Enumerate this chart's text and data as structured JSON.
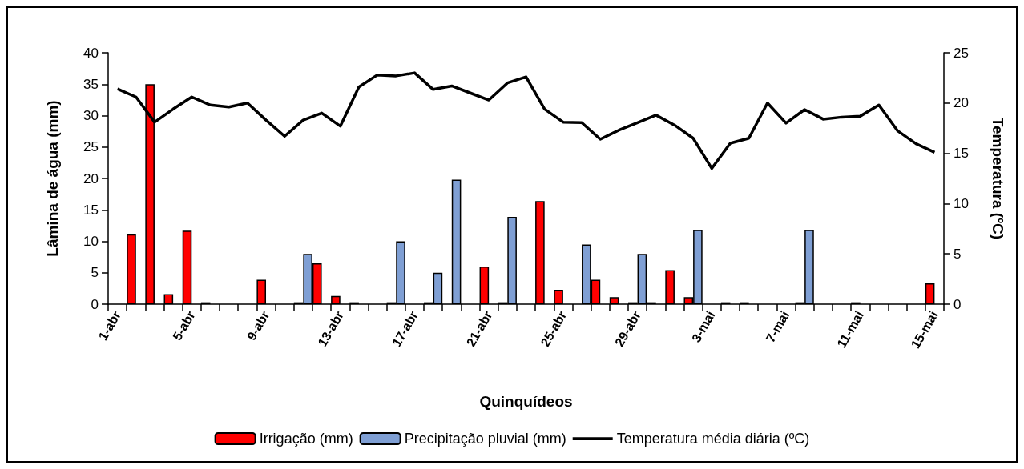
{
  "chart_data": {
    "type": "bar",
    "xlabel": "Quinquídeos",
    "ylabel": "Lâmina de água (mm)",
    "y2label": "Temperatura (ºC)",
    "categories": [
      "1-abr",
      null,
      null,
      null,
      "5-abr",
      null,
      null,
      null,
      "9-abr",
      null,
      null,
      null,
      "13-abr",
      null,
      null,
      null,
      "17-abr",
      null,
      null,
      null,
      "21-abr",
      null,
      null,
      null,
      "25-abr",
      null,
      null,
      null,
      "29-abr",
      null,
      null,
      null,
      "3-mai",
      null,
      null,
      null,
      "7-mai",
      null,
      null,
      null,
      "11-mai",
      null,
      null,
      null,
      "15-mai"
    ],
    "series": [
      {
        "name": "Irrigação (mm)",
        "color": "#ff0000",
        "values": [
          null,
          11.1,
          35,
          1.6,
          11.7,
          0.3,
          null,
          null,
          3.9,
          null,
          0.3,
          6.5,
          1.3,
          0.3,
          null,
          0.3,
          null,
          0.3,
          null,
          null,
          6,
          0.3,
          null,
          16.4,
          2.3,
          null,
          3.9,
          1.1,
          0.3,
          0.3,
          5.4,
          1.1,
          null,
          0.3,
          0.3,
          null,
          null,
          0.3,
          null,
          null,
          0.3,
          null,
          null,
          null,
          3.3
        ]
      },
      {
        "name": "Precipitação pluvial (mm)",
        "color": "#7f9fd4",
        "values": [
          null,
          null,
          null,
          null,
          null,
          null,
          null,
          null,
          null,
          null,
          8,
          null,
          null,
          null,
          null,
          10,
          null,
          5,
          19.8,
          null,
          null,
          13.9,
          null,
          null,
          null,
          9.5,
          null,
          null,
          8,
          null,
          null,
          11.8,
          null,
          null,
          null,
          null,
          null,
          11.8,
          null,
          null,
          null,
          null,
          null,
          null,
          null
        ]
      },
      {
        "name": "Temperatura média diária (ºC)",
        "type": "line",
        "axis": "y2",
        "color": "#000000",
        "values": [
          21.4,
          20.6,
          18.1,
          19.4,
          20.6,
          19.8,
          19.6,
          20,
          18.3,
          16.7,
          18.3,
          19,
          17.7,
          21.6,
          22.8,
          22.7,
          23,
          21.35,
          21.7,
          21,
          20.3,
          22,
          22.6,
          19.4,
          18.1,
          18.05,
          16.4,
          17.3,
          18.05,
          18.8,
          17.8,
          16.5,
          13.5,
          16,
          16.5,
          20,
          18,
          19.35,
          18.4,
          18.6,
          18.7,
          19.8,
          17.25,
          15.95,
          15.1
        ]
      }
    ],
    "ylim": [
      0,
      40
    ],
    "yticks": [
      0,
      5,
      10,
      15,
      20,
      25,
      30,
      35,
      40
    ],
    "y2lim": [
      0,
      25
    ],
    "y2ticks": [
      0,
      5,
      10,
      15,
      20,
      25
    ],
    "grid": false,
    "legend": "bottom",
    "marker": "none"
  }
}
